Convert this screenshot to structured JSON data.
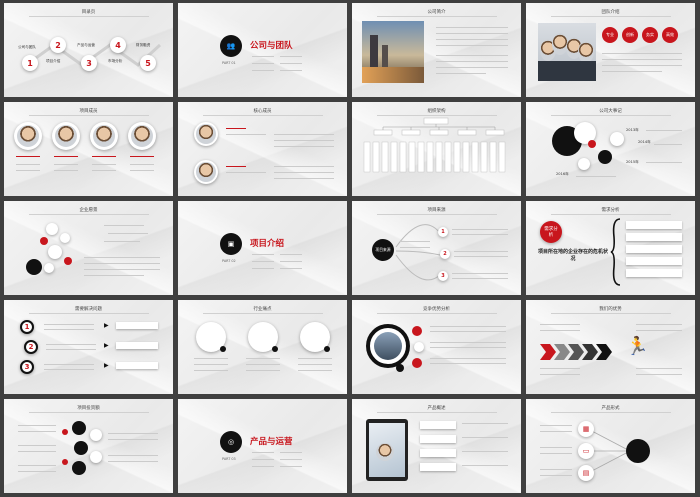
{
  "slides": {
    "s1": {
      "title": "目录页",
      "items": [
        "公司与团队",
        "项目介绍",
        "产品与运营",
        "市场分析",
        "财务融资"
      ],
      "nums": [
        "1",
        "2",
        "3",
        "4",
        "5"
      ]
    },
    "s2": {
      "title": "公司与团队",
      "part": "PART 01"
    },
    "s3": {
      "title": "公司简介"
    },
    "s4": {
      "title": "团队介绍",
      "tags": [
        "专业",
        "创新",
        "务实",
        "高效"
      ]
    },
    "s5": {
      "title": "项目成员"
    },
    "s6": {
      "title": "核心成员"
    },
    "s7": {
      "title": "组织架构"
    },
    "s8": {
      "title": "公司大事记",
      "years": [
        "2013年",
        "2014年",
        "2015年",
        "2016年"
      ]
    },
    "s9": {
      "title": "企业愿景"
    },
    "s10": {
      "title": "项目介绍",
      "part": "PART 02"
    },
    "s11": {
      "title": "项目来源",
      "center": "项目来源"
    },
    "s12": {
      "title": "需求分析",
      "badge": "需求分析",
      "main": "项目所在地的企业存在的危机状况"
    },
    "s13": {
      "title": "需要解决问题",
      "nums": [
        "1",
        "2",
        "3"
      ]
    },
    "s14": {
      "title": "行业痛点"
    },
    "s15": {
      "title": "竞争优势分析"
    },
    "s16": {
      "title": "我们的优势"
    },
    "s17": {
      "title": "项目投资额"
    },
    "s18": {
      "title": "产品与运营",
      "part": "PART 03"
    },
    "s19": {
      "title": "产品概述"
    },
    "s20": {
      "title": "产品形式"
    }
  },
  "colors": {
    "accent": "#c8161d",
    "dark": "#111111",
    "bg": "#f2f2f2"
  }
}
